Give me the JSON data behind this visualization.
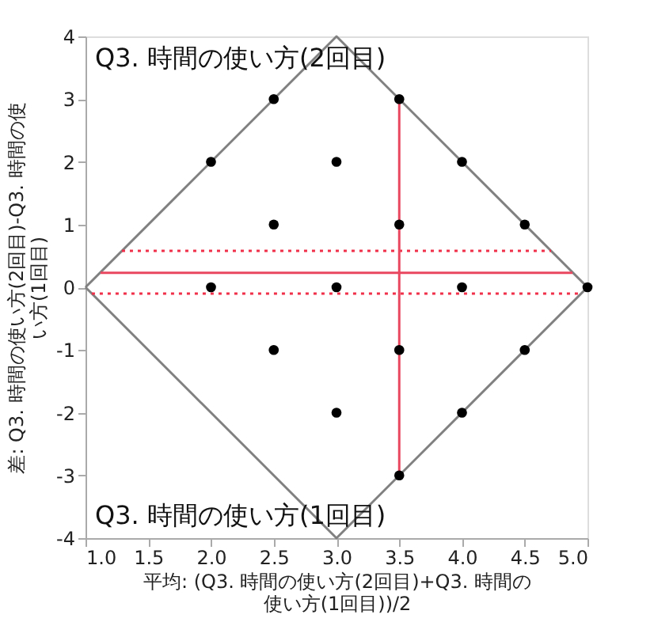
{
  "chart_data": {
    "type": "scatter",
    "xlabel": "平均: (Q3. 時間の使い方(2回目)+Q3. 時間の使い方(1回目))/2",
    "ylabel": "差: Q3. 時間の使い方(2回目)-Q3. 時間の使い方(1回目)",
    "annotations": [
      "Q3. 時間の使い方(2回目)",
      "Q3. 時間の使い方(1回目)"
    ],
    "xlim": [
      1,
      5
    ],
    "xticks": [
      {
        "value": 1,
        "label": "1.0"
      },
      {
        "value": 1.5,
        "label": "1.5"
      },
      {
        "value": 2,
        "label": "2.0"
      },
      {
        "value": 2.5,
        "label": "2.5"
      },
      {
        "value": 3,
        "label": "3.0"
      },
      {
        "value": 3.5,
        "label": "3.5"
      },
      {
        "value": 4,
        "label": "4.0"
      },
      {
        "value": 4.5,
        "label": "4.5"
      },
      {
        "value": 5,
        "label": "5.0"
      }
    ],
    "ylim": [
      -4,
      4
    ],
    "yticks": [
      -4,
      -3,
      -2,
      -1,
      0,
      1,
      2,
      3,
      4
    ],
    "grid": false,
    "series": [
      {
        "type": "line",
        "color": "#808080",
        "x": [
          1,
          3,
          5
        ],
        "values": [
          0,
          4,
          0
        ],
        "line_style": "solid",
        "marker": "none"
      },
      {
        "type": "line",
        "color": "#808080",
        "x": [
          1,
          3,
          5
        ],
        "values": [
          0,
          -4,
          0
        ],
        "line_style": "solid",
        "marker": "none"
      },
      {
        "type": "line",
        "color": "#e8475f",
        "x": [
          1.12,
          4.88
        ],
        "values": [
          0.23,
          0.23
        ],
        "line_style": "solid",
        "marker": "none"
      },
      {
        "type": "line",
        "color": "#f0304a",
        "x": [
          1.29,
          4.71
        ],
        "values": [
          0.58,
          0.58
        ],
        "line_style": "dotted",
        "marker": "none"
      },
      {
        "type": "line",
        "color": "#f0304a",
        "x": [
          1.05,
          4.95
        ],
        "values": [
          -0.1,
          -0.1
        ],
        "line_style": "dotted",
        "marker": "none"
      },
      {
        "type": "line",
        "color": "#e8475f",
        "x": [
          3.5,
          3.5
        ],
        "values": [
          -3,
          3
        ],
        "line_style": "solid",
        "marker": "none"
      },
      {
        "color": "#000000",
        "marker": "circle",
        "x": [
          2.5,
          3.5,
          2,
          3,
          4,
          2.5,
          3.5,
          4.5,
          2,
          3,
          4,
          5,
          2.5,
          3.5,
          4.5,
          3,
          4,
          3.5
        ],
        "values": [
          3,
          3,
          2,
          2,
          2,
          1,
          1,
          1,
          0,
          0,
          0,
          0,
          -1,
          -1,
          -1,
          -2,
          -2,
          -3
        ]
      }
    ]
  }
}
